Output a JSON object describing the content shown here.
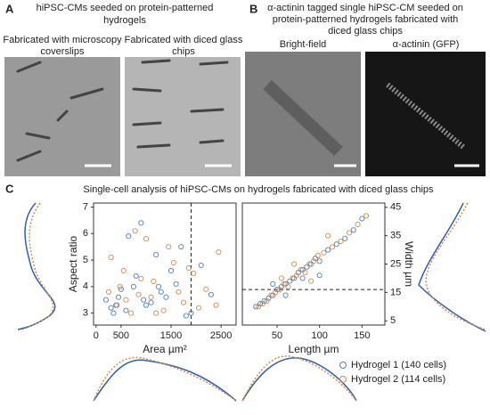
{
  "panel_a": {
    "label": "A",
    "title_lines": [
      "hiPSC-CMs seeded on protein-patterned",
      "hydrogels"
    ],
    "captions": [
      [
        "Fabricated with microscopy",
        "coverslips"
      ],
      [
        "Fabricated with diced glass",
        "chips"
      ]
    ]
  },
  "panel_b": {
    "label": "B",
    "title_lines": [
      "α-actinin tagged single hiPSC-CM seeded on",
      "protein-patterned hydrogels fabricated with",
      "diced glass chips"
    ],
    "captions": [
      "Bright-field",
      "α-actinin (GFP)"
    ]
  },
  "panel_c": {
    "label": "C",
    "title": "Single-cell analysis of hiPSC-CMs on hydrogels fabricated with diced glass chips"
  },
  "chart_data": [
    {
      "type": "scatter",
      "x_label": "Area µm²",
      "y_label": "Aspect ratio",
      "y_axis_position": "left",
      "xlim": [
        -50,
        2800
      ],
      "xticks": [
        0,
        500,
        1500,
        2500
      ],
      "ylim": [
        2.55,
        7.15
      ],
      "yticks": [
        3,
        4,
        5,
        6,
        7
      ],
      "vline": 1900,
      "series": [
        {
          "color": "#4a7fc1",
          "x": [
            300,
            450,
            600,
            750,
            900,
            1100,
            1300,
            1500,
            1700,
            200,
            350,
            500,
            800,
            1000,
            1200,
            1400,
            1600,
            1900,
            2100,
            2300,
            650,
            950,
            1250,
            400,
            1800
          ],
          "values": [
            3.2,
            3.6,
            3.1,
            4.0,
            6.4,
            3.4,
            3.8,
            4.6,
            5.5,
            3.5,
            3.0,
            3.9,
            4.4,
            3.3,
            5.2,
            3.6,
            4.1,
            3.0,
            4.8,
            3.7,
            5.9,
            3.5,
            4.0,
            3.3,
            2.9
          ]
        },
        {
          "color": "#d9894a",
          "x": [
            250,
            420,
            550,
            700,
            850,
            1000,
            1150,
            1350,
            1550,
            1750,
            1950,
            2200,
            2400,
            300,
            600,
            900,
            1200,
            1450,
            1650,
            2050,
            2450,
            480,
            780,
            1100,
            1850
          ],
          "values": [
            3.8,
            3.3,
            4.6,
            3.0,
            3.7,
            5.8,
            4.2,
            3.1,
            4.9,
            3.4,
            4.5,
            3.9,
            3.3,
            5.1,
            3.5,
            4.3,
            3.0,
            5.5,
            3.8,
            3.2,
            5.3,
            4.0,
            6.1,
            3.6,
            4.7
          ]
        }
      ]
    },
    {
      "type": "scatter",
      "x_label": "Length µm",
      "y_label": "Width µm",
      "y_axis_position": "right",
      "legend": "bottom right",
      "xlim": [
        9,
        177
      ],
      "xticks": [
        50,
        100,
        150
      ],
      "ylim": [
        3.5,
        46.5
      ],
      "yticks": [
        5,
        15,
        25,
        35,
        45
      ],
      "hline": 16,
      "series": [
        {
          "name": "Hydrogel 1 (140 cells)",
          "color": "#4a7fc1",
          "x": [
            25,
            30,
            35,
            40,
            45,
            50,
            55,
            60,
            65,
            70,
            75,
            80,
            85,
            90,
            95,
            100,
            110,
            120,
            130,
            140,
            150,
            60,
            80,
            100,
            45
          ],
          "values": [
            10,
            11,
            12,
            13,
            14,
            16,
            17,
            18,
            19,
            20,
            22,
            23,
            24,
            25,
            27,
            26,
            30,
            32,
            34,
            37,
            41,
            14,
            20,
            21,
            18
          ]
        },
        {
          "name": "Hydrogel 2 (114 cells)",
          "color": "#d9894a",
          "x": [
            28,
            33,
            38,
            43,
            48,
            53,
            58,
            63,
            68,
            73,
            78,
            83,
            88,
            93,
            98,
            105,
            115,
            125,
            135,
            145,
            70,
            90,
            55,
            110,
            155
          ],
          "values": [
            10,
            11,
            12,
            14,
            15,
            16,
            18,
            17,
            20,
            21,
            23,
            22,
            25,
            26,
            28,
            29,
            31,
            33,
            36,
            39,
            25,
            19,
            20,
            35,
            42
          ]
        }
      ]
    }
  ]
}
